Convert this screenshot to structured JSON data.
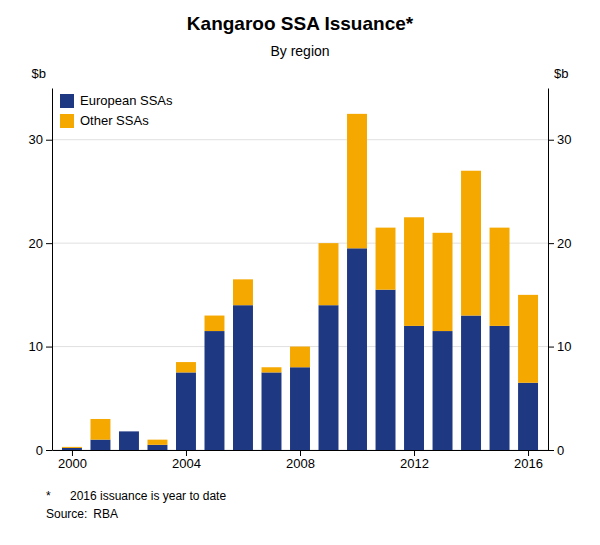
{
  "chart_data": {
    "type": "bar",
    "stacked": true,
    "title": "Kangaroo SSA Issuance*",
    "subtitle": "By region",
    "ylabel": "$b",
    "y2label": "$b",
    "annotations": [
      "*",
      "2016 issuance is year to date",
      "Source:",
      "RBA"
    ],
    "x": [
      2000,
      2001,
      2002,
      2003,
      2004,
      2005,
      2006,
      2007,
      2008,
      2009,
      2010,
      2011,
      2012,
      2013,
      2014,
      2015,
      2016
    ],
    "series": [
      {
        "name": "European SSAs",
        "color": "#1F3882",
        "values": [
          0.2,
          1.0,
          1.8,
          0.5,
          7.5,
          11.5,
          14.0,
          7.5,
          8.0,
          14.0,
          19.5,
          15.5,
          12.0,
          11.5,
          13.0,
          12.0,
          6.5
        ]
      },
      {
        "name": "Other SSAs",
        "color": "#F5A800",
        "values": [
          0.1,
          2.0,
          0.0,
          0.5,
          1.0,
          1.5,
          2.5,
          0.5,
          2.0,
          6.0,
          13.0,
          6.0,
          10.5,
          9.5,
          14.0,
          9.5,
          8.5
        ]
      }
    ],
    "xlim": [
      1999.3,
      2016.7
    ],
    "xticks": [
      2000,
      2004,
      2008,
      2012,
      2016
    ],
    "ylim": [
      0,
      35
    ],
    "yticks": [
      0,
      10,
      20,
      30
    ],
    "y2lim": [
      0,
      35
    ],
    "y2ticks": [
      0,
      10,
      20,
      30
    ],
    "grid": true,
    "legend": "upper left"
  }
}
